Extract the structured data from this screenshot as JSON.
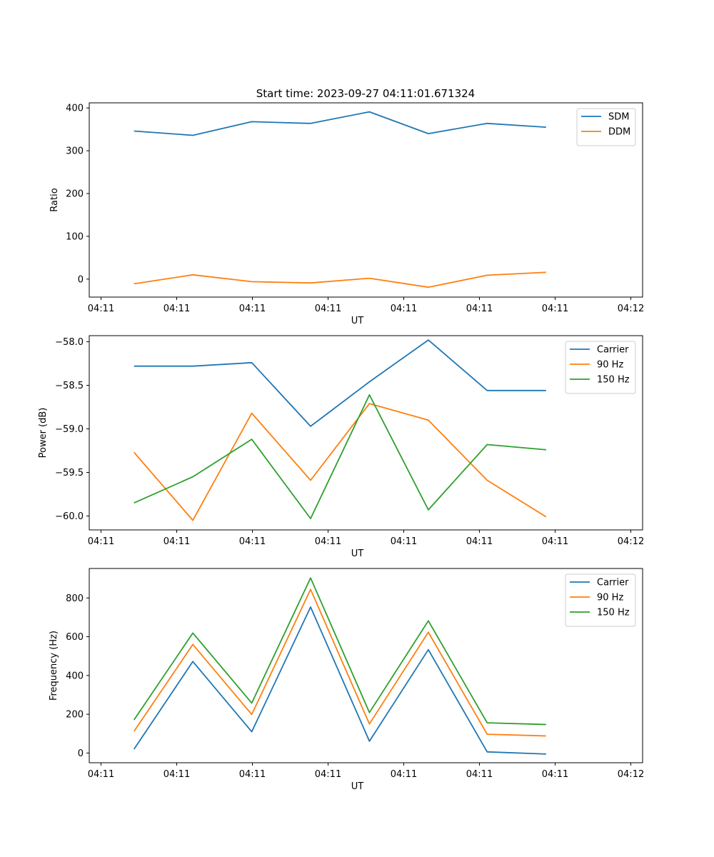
{
  "figure_title": "Start time: 2023-09-27 04:11:01.671324",
  "colors": {
    "blue": "#1f77b4",
    "orange": "#ff7f0e",
    "green": "#2ca02c"
  },
  "chart_data": [
    {
      "type": "line",
      "title": "Start time: 2023-09-27 04:11:01.671324",
      "xlabel": "UT",
      "ylabel": "Ratio",
      "xlim": [
        -0.2,
        9.2
      ],
      "ylim": [
        -42,
        412
      ],
      "x_tick_labels": [
        "04:11",
        "04:11",
        "04:11",
        "04:11",
        "04:11",
        "04:11",
        "04:11"
      ],
      "x_tick_label_last": "04:12",
      "y_ticks": [
        0,
        100,
        200,
        300,
        400
      ],
      "y_tick_labels": [
        "0",
        "100",
        "200",
        "300",
        "400"
      ],
      "legend": "top-right",
      "x": [
        0.56,
        1.56,
        2.56,
        3.56,
        4.56,
        5.56,
        6.56,
        7.56
      ],
      "series": [
        {
          "name": "SDM",
          "color": "#1f77b4",
          "values": [
            346,
            336,
            368,
            364,
            391,
            340,
            364,
            355
          ]
        },
        {
          "name": "DDM",
          "color": "#ff7f0e",
          "values": [
            -11,
            10,
            -6,
            -9,
            2,
            -19,
            9,
            16
          ]
        }
      ]
    },
    {
      "type": "line",
      "title": "",
      "xlabel": "UT",
      "ylabel": "Power (dB)",
      "xlim": [
        -0.2,
        9.2
      ],
      "ylim": [
        -60.16,
        -57.93
      ],
      "x_tick_labels": [
        "04:11",
        "04:11",
        "04:11",
        "04:11",
        "04:11",
        "04:11",
        "04:11"
      ],
      "x_tick_label_last": "04:12",
      "y_ticks": [
        -60.0,
        -59.5,
        -59.0,
        -58.5,
        -58.0
      ],
      "y_tick_labels": [
        "−60.0",
        "−59.5",
        "−59.0",
        "−58.5",
        "−58.0"
      ],
      "legend": "top-right",
      "x": [
        0.56,
        1.56,
        2.56,
        3.56,
        4.56,
        5.56,
        6.56,
        7.56
      ],
      "series": [
        {
          "name": "Carrier",
          "color": "#1f77b4",
          "values": [
            -58.28,
            -58.28,
            -58.24,
            -58.97,
            -58.46,
            -57.98,
            -58.56,
            -58.56
          ]
        },
        {
          "name": "90 Hz",
          "color": "#ff7f0e",
          "values": [
            -59.27,
            -60.05,
            -58.82,
            -59.59,
            -58.71,
            -58.9,
            -59.59,
            -60.01
          ]
        },
        {
          "name": "150 Hz",
          "color": "#2ca02c",
          "values": [
            -59.85,
            -59.55,
            -59.12,
            -60.03,
            -58.61,
            -59.93,
            -59.18,
            -59.24
          ]
        }
      ]
    },
    {
      "type": "line",
      "title": "",
      "xlabel": "UT",
      "ylabel": "Frequency (Hz)",
      "xlim": [
        -0.2,
        9.2
      ],
      "ylim": [
        -50,
        952
      ],
      "x_tick_labels": [
        "04:11",
        "04:11",
        "04:11",
        "04:11",
        "04:11",
        "04:11",
        "04:11"
      ],
      "x_tick_label_last": "04:12",
      "y_ticks": [
        0,
        200,
        400,
        600,
        800
      ],
      "y_tick_labels": [
        "0",
        "200",
        "400",
        "600",
        "800"
      ],
      "legend": "top-right",
      "x": [
        0.56,
        1.56,
        2.56,
        3.56,
        4.56,
        5.56,
        6.56,
        7.56
      ],
      "series": [
        {
          "name": "Carrier",
          "color": "#1f77b4",
          "values": [
            20,
            472,
            110,
            753,
            61,
            533,
            6,
            -5
          ]
        },
        {
          "name": "90 Hz",
          "color": "#ff7f0e",
          "values": [
            112,
            560,
            199,
            844,
            150,
            623,
            97,
            88
          ]
        },
        {
          "name": "150 Hz",
          "color": "#2ca02c",
          "values": [
            171,
            619,
            258,
            903,
            209,
            682,
            156,
            147
          ]
        }
      ]
    }
  ]
}
